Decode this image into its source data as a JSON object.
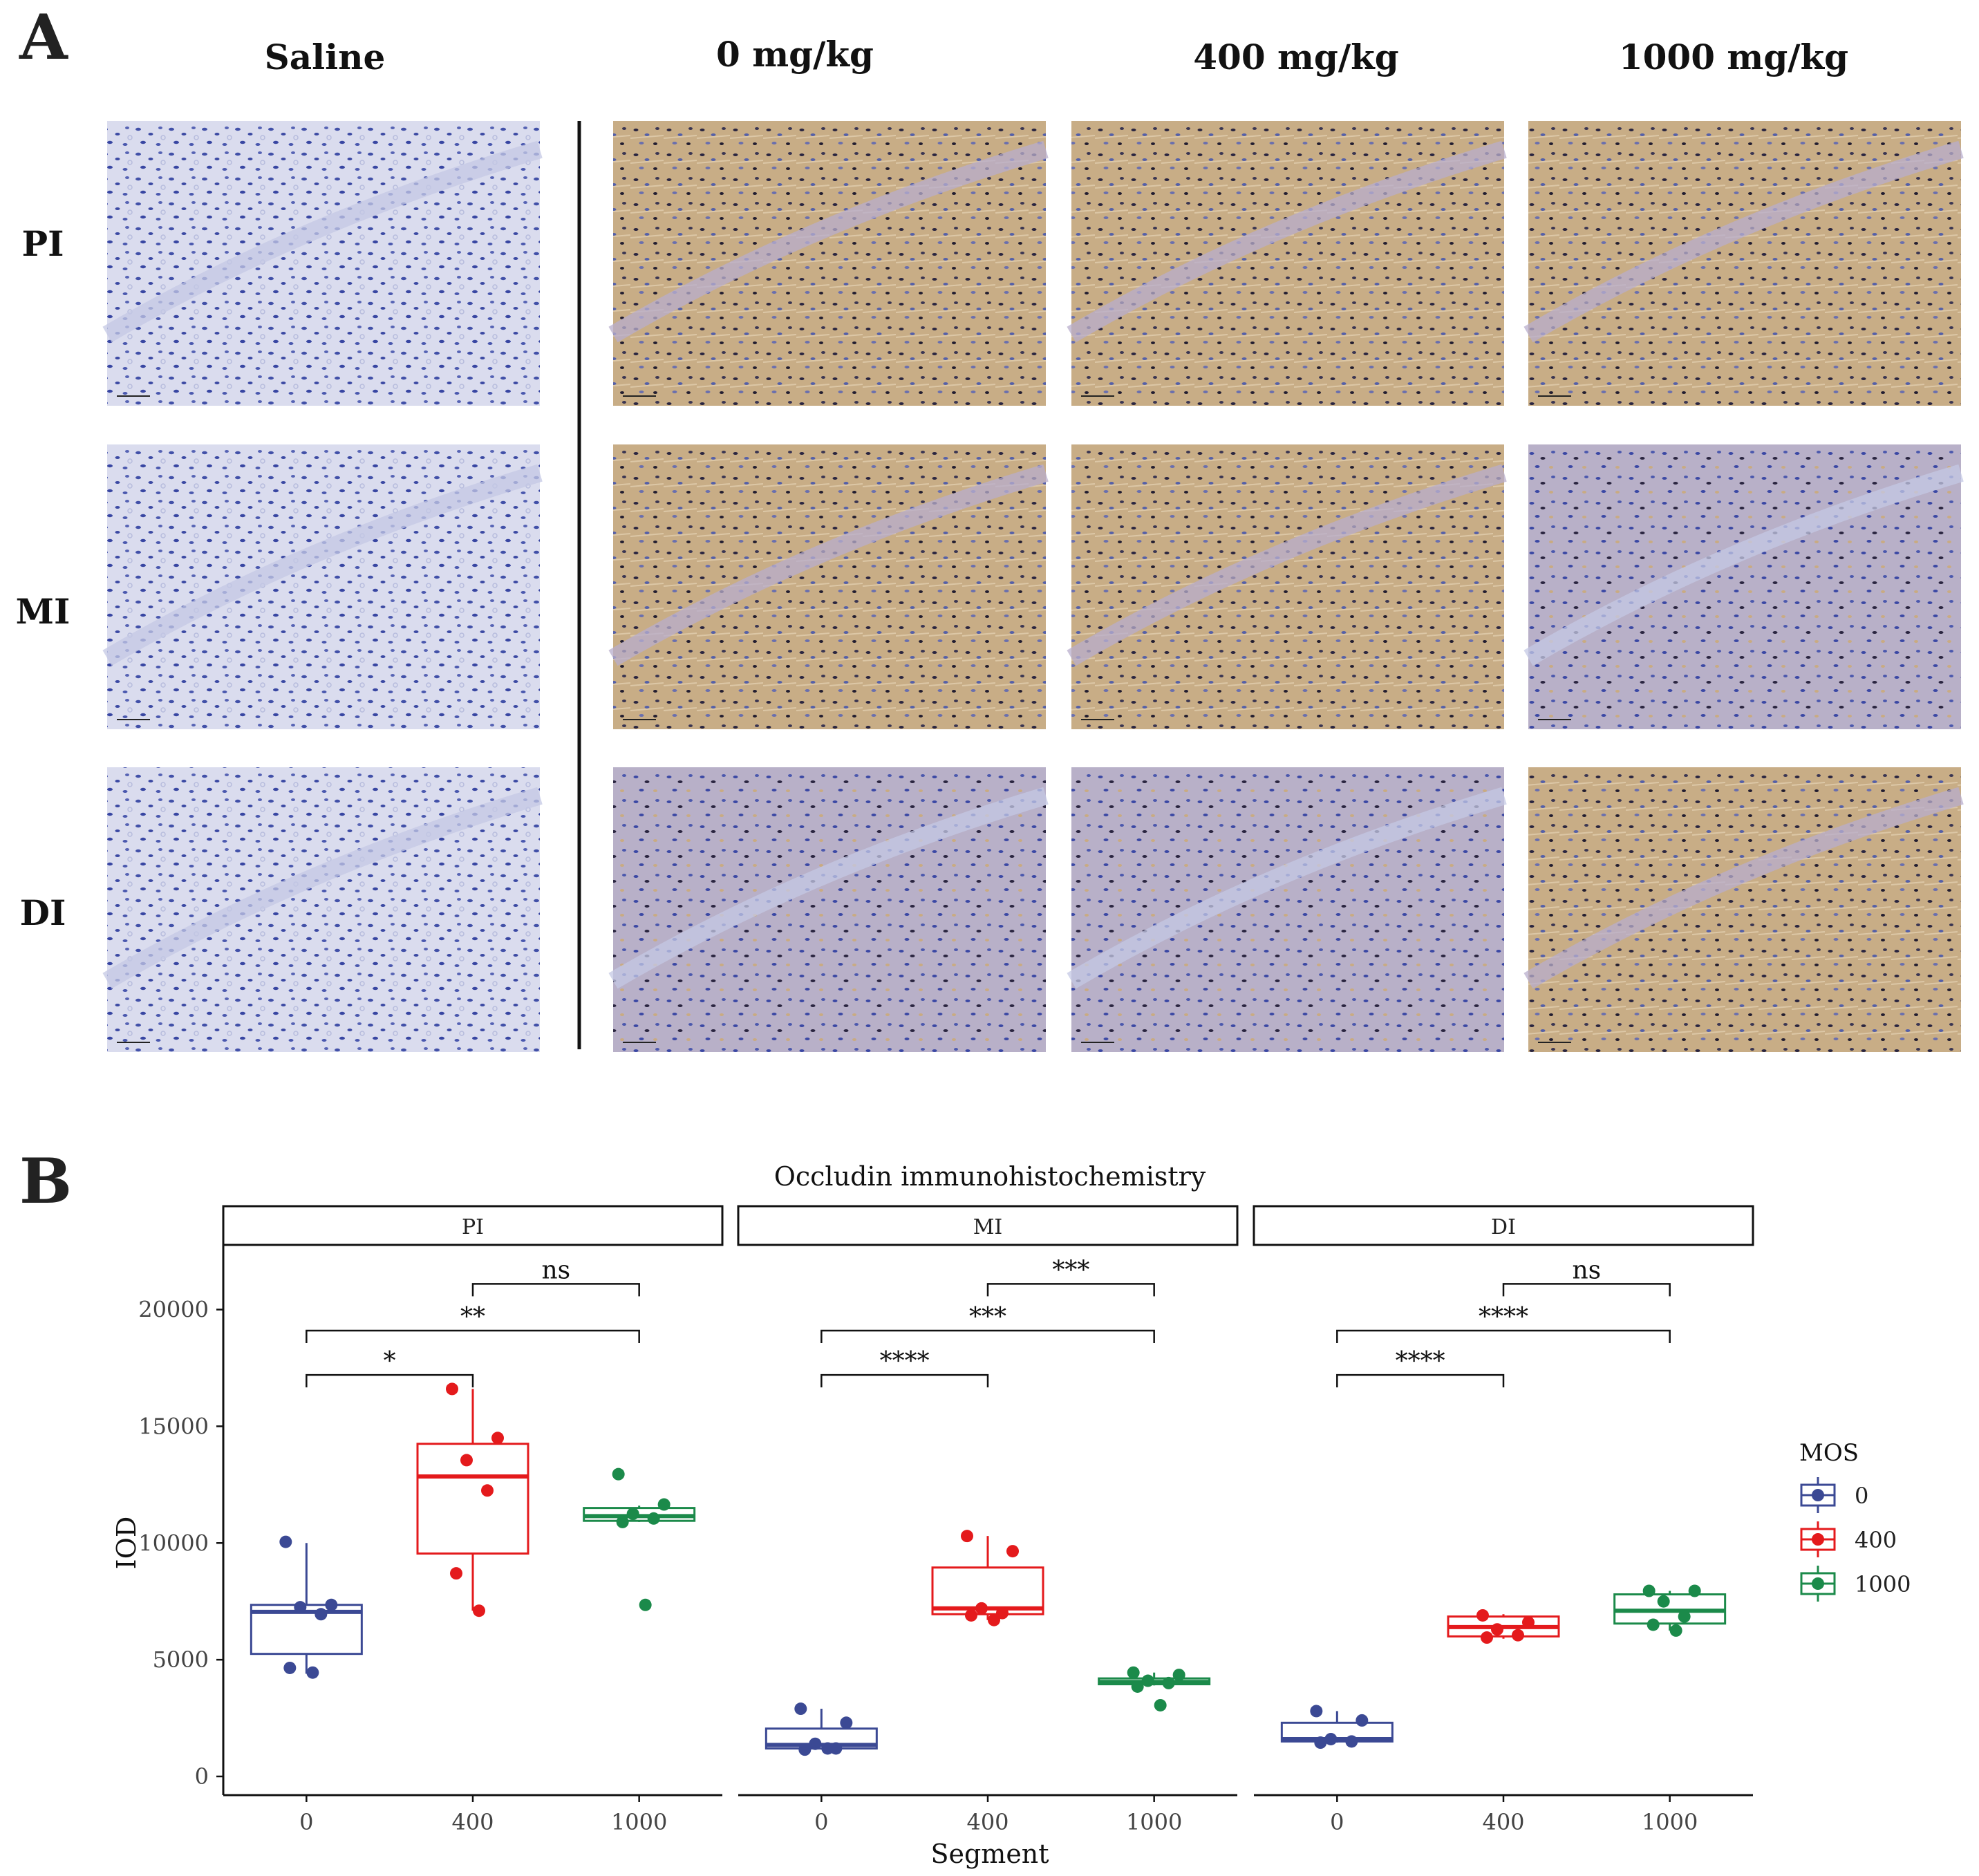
{
  "panel_a": {
    "label": "A",
    "columns": [
      "Saline",
      "0 mg/kg",
      "400 mg/kg",
      "1000 mg/kg"
    ],
    "rows": [
      "PI",
      "MI",
      "DI"
    ],
    "tiles": [
      {
        "row": "PI",
        "col": "Saline",
        "stain": "saline"
      },
      {
        "row": "PI",
        "col": "0 mg/kg",
        "stain": "tan"
      },
      {
        "row": "PI",
        "col": "400 mg/kg",
        "stain": "tan"
      },
      {
        "row": "PI",
        "col": "1000 mg/kg",
        "stain": "tan"
      },
      {
        "row": "MI",
        "col": "Saline",
        "stain": "saline"
      },
      {
        "row": "MI",
        "col": "0 mg/kg",
        "stain": "tan"
      },
      {
        "row": "MI",
        "col": "400 mg/kg",
        "stain": "tan"
      },
      {
        "row": "MI",
        "col": "1000 mg/kg",
        "stain": "mixed"
      },
      {
        "row": "DI",
        "col": "Saline",
        "stain": "saline"
      },
      {
        "row": "DI",
        "col": "0 mg/kg",
        "stain": "mixed"
      },
      {
        "row": "DI",
        "col": "400 mg/kg",
        "stain": "mixed"
      },
      {
        "row": "DI",
        "col": "1000 mg/kg",
        "stain": "tan"
      }
    ],
    "stain_colors": {
      "saline_bg": "#d9dcef",
      "nucleus": "#3a48a8",
      "tan_bg": "#c9ad84",
      "dark_nucleus": "#1e1a2c"
    }
  },
  "panel_b": {
    "label": "B",
    "chart_data": {
      "type": "box",
      "title": "Occludin immunohistochemistry",
      "xlabel": "Segment",
      "ylabel": "IOD",
      "ylim": [
        -800,
        22800
      ],
      "yticks": [
        0,
        5000,
        10000,
        15000,
        20000
      ],
      "categories": [
        "0",
        "400",
        "1000"
      ],
      "legend": {
        "title": "MOS",
        "position": "right",
        "entries": [
          "0",
          "400",
          "1000"
        ]
      },
      "colors": {
        "0": "#3b4994",
        "400": "#e41a1c",
        "1000": "#1b8a4a"
      },
      "facets": [
        {
          "name": "PI",
          "groups": [
            {
              "dose": "0",
              "q1": 5250,
              "median": 7050,
              "q3": 7350,
              "whisker_low": 4400,
              "whisker_high": 10000,
              "points": [
                10050,
                7350,
                7250,
                6950,
                4650,
                4450
              ]
            },
            {
              "dose": "400",
              "q1": 9550,
              "median": 12850,
              "q3": 14250,
              "whisker_low": 7100,
              "whisker_high": 16600,
              "points": [
                16600,
                14500,
                13550,
                12250,
                8700,
                7100
              ]
            },
            {
              "dose": "1000",
              "q1": 10950,
              "median": 11150,
              "q3": 11500,
              "whisker_low": 10900,
              "whisker_high": 11600,
              "points": [
                12950,
                11650,
                11250,
                11050,
                10900,
                7350
              ]
            }
          ],
          "comparisons": [
            {
              "a": "400",
              "b": "1000",
              "label": "ns",
              "y": 21100
            },
            {
              "a": "0",
              "b": "1000",
              "label": "**",
              "y": 19100
            },
            {
              "a": "0",
              "b": "400",
              "label": "*",
              "y": 17200
            }
          ]
        },
        {
          "name": "MI",
          "groups": [
            {
              "dose": "0",
              "q1": 1200,
              "median": 1350,
              "q3": 2050,
              "whisker_low": 1150,
              "whisker_high": 2900,
              "points": [
                2900,
                2300,
                1400,
                1200,
                1150,
                1200
              ]
            },
            {
              "dose": "400",
              "q1": 6950,
              "median": 7200,
              "q3": 8950,
              "whisker_low": 6700,
              "whisker_high": 10300,
              "points": [
                10300,
                9650,
                7200,
                7000,
                6900,
                6700
              ]
            },
            {
              "dose": "1000",
              "q1": 3950,
              "median": 4050,
              "q3": 4200,
              "whisker_low": 3900,
              "whisker_high": 4450,
              "points": [
                4450,
                4350,
                4100,
                4000,
                3850,
                3050
              ]
            }
          ],
          "comparisons": [
            {
              "a": "400",
              "b": "1000",
              "label": "***",
              "y": 21100
            },
            {
              "a": "0",
              "b": "1000",
              "label": "***",
              "y": 19100
            },
            {
              "a": "0",
              "b": "400",
              "label": "****",
              "y": 17200
            }
          ]
        },
        {
          "name": "DI",
          "groups": [
            {
              "dose": "0",
              "q1": 1500,
              "median": 1600,
              "q3": 2300,
              "whisker_low": 1450,
              "whisker_high": 2800,
              "points": [
                2800,
                2400,
                1600,
                1500,
                1450
              ]
            },
            {
              "dose": "400",
              "q1": 6000,
              "median": 6400,
              "q3": 6850,
              "whisker_low": 5900,
              "whisker_high": 6950,
              "points": [
                6900,
                6600,
                6300,
                6050,
                5950
              ]
            },
            {
              "dose": "1000",
              "q1": 6550,
              "median": 7100,
              "q3": 7800,
              "whisker_low": 6250,
              "whisker_high": 7950,
              "points": [
                7950,
                7950,
                7500,
                6850,
                6500,
                6250
              ]
            }
          ],
          "comparisons": [
            {
              "a": "400",
              "b": "1000",
              "label": "ns",
              "y": 21100
            },
            {
              "a": "0",
              "b": "1000",
              "label": "****",
              "y": 19100
            },
            {
              "a": "0",
              "b": "400",
              "label": "****",
              "y": 17200
            }
          ]
        }
      ]
    }
  }
}
